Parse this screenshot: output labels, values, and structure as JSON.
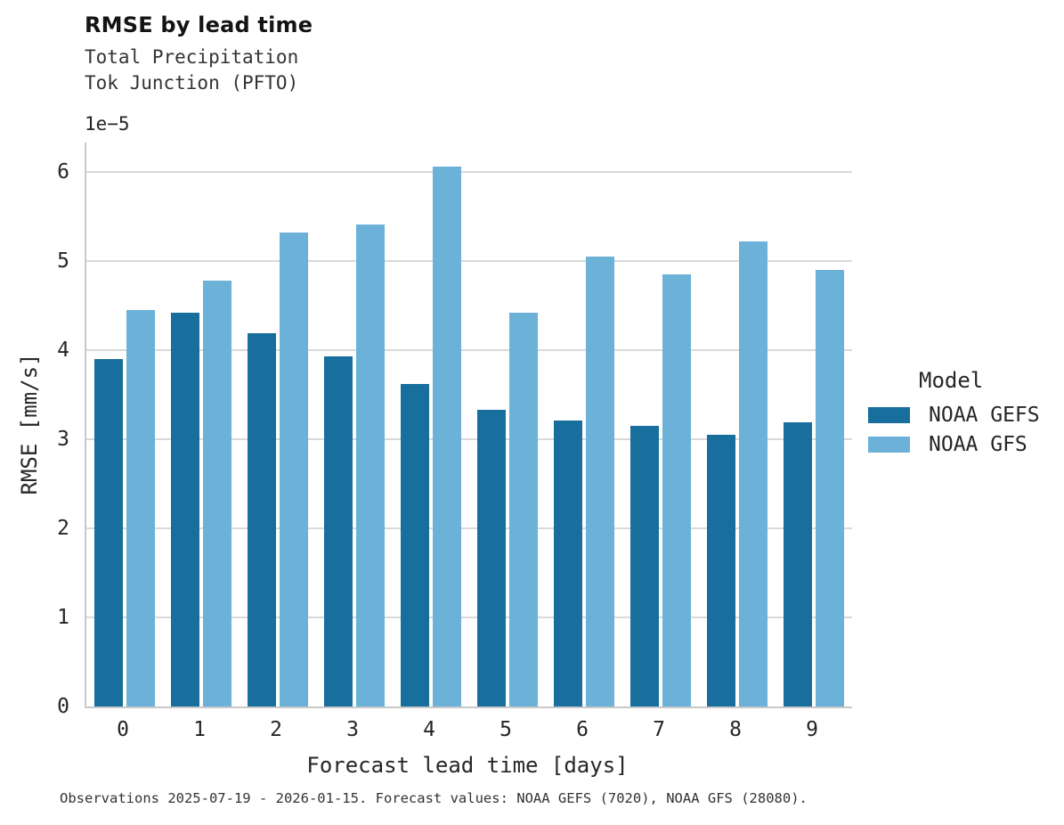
{
  "header": {
    "title": "RMSE by lead time",
    "subtitle_variable": "Total Precipitation",
    "subtitle_station": "Tok Junction (PFTO)"
  },
  "chart_data": {
    "type": "bar",
    "title": "RMSE by lead time",
    "subtitle": [
      "Total Precipitation",
      "Tok Junction (PFTO)"
    ],
    "xlabel": "Forecast lead time [days]",
    "ylabel": "RMSE [mm/s]",
    "offset_label": "1e−5",
    "value_unit": "1e-5 mm/s",
    "categories": [
      "0",
      "1",
      "2",
      "3",
      "4",
      "5",
      "6",
      "7",
      "8",
      "9"
    ],
    "series": [
      {
        "name": "NOAA GEFS",
        "color": "#186e9c",
        "values": [
          3.9,
          4.42,
          4.19,
          3.93,
          3.62,
          3.33,
          3.21,
          3.15,
          3.05,
          3.19
        ]
      },
      {
        "name": "NOAA GFS",
        "color": "#6bb1d8",
        "values": [
          4.45,
          4.78,
          5.32,
          5.41,
          6.06,
          4.42,
          5.05,
          4.85,
          5.22,
          4.9
        ]
      }
    ],
    "y_ticks": [
      0,
      1,
      2,
      3,
      4,
      5,
      6
    ],
    "ylim": [
      0,
      6.33
    ],
    "grid": "horizontal",
    "legend": {
      "title": "Model",
      "position": "right",
      "entries": [
        "NOAA GEFS",
        "NOAA GFS"
      ]
    },
    "colors": {
      "grid": "#d9d9d9",
      "spine": "#c8c8c8",
      "text": "#262626"
    }
  },
  "footer": {
    "caption": "Observations 2025-07-19 - 2026-01-15. Forecast values: NOAA GEFS (7020), NOAA GFS (28080)."
  }
}
